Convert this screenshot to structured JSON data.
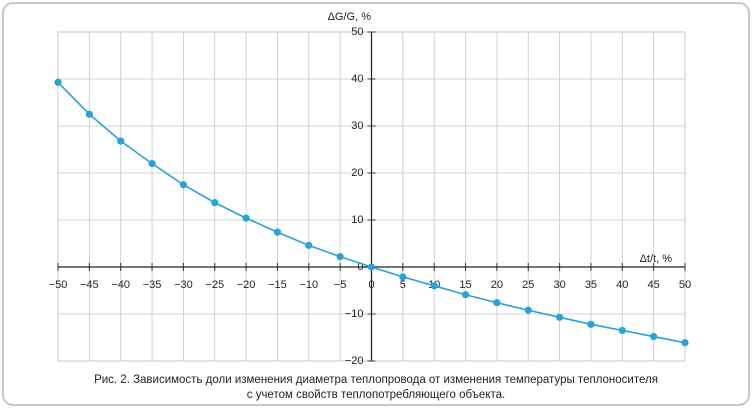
{
  "chart_data": {
    "type": "line",
    "y_axis_label": "ΔG/G, %",
    "x_axis_label": "Δt/t, %",
    "caption": [
      "Рис. 2. Зависимость доли изменения диаметра теплопровода от изменения температуры теплоносителя",
      "с учетом свойств теплопотребляющего объекта."
    ],
    "x": [
      -50,
      -45,
      -40,
      -35,
      -30,
      -25,
      -20,
      -15,
      -10,
      -5,
      0,
      5,
      10,
      15,
      20,
      25,
      30,
      35,
      40,
      45,
      50
    ],
    "values": [
      39.3,
      32.5,
      26.8,
      22,
      17.5,
      13.7,
      10.4,
      7.4,
      4.6,
      2.2,
      0,
      -2.1,
      -4,
      -5.9,
      -7.6,
      -9.2,
      -10.7,
      -12.2,
      -13.5,
      -14.8,
      -16.1
    ],
    "color": "#29a3d6",
    "xlim": [
      -50,
      50
    ],
    "ylim": [
      -20,
      50
    ],
    "xticks": [
      {
        "value": -50,
        "label": "−50"
      },
      {
        "value": -45,
        "label": "−45"
      },
      {
        "value": -40,
        "label": "−40"
      },
      {
        "value": -35,
        "label": "−35"
      },
      {
        "value": -30,
        "label": "−30"
      },
      {
        "value": -25,
        "label": "−25"
      },
      {
        "value": -20,
        "label": "−20"
      },
      {
        "value": -15,
        "label": "−15"
      },
      {
        "value": -10,
        "label": "−10"
      },
      {
        "value": -5,
        "label": "−5"
      },
      0,
      5,
      10,
      15,
      20,
      25,
      30,
      35,
      40,
      45,
      50
    ],
    "yticks": [
      {
        "value": -20,
        "label": "−20"
      },
      {
        "value": -10,
        "label": "−10"
      },
      0,
      10,
      20,
      30,
      40,
      50
    ],
    "grid": true
  }
}
